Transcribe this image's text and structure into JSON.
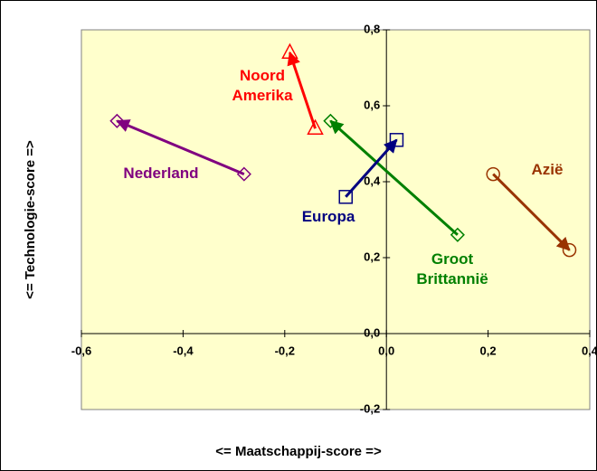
{
  "chart_data": {
    "type": "scatter",
    "x_label": "<= Maatschappij-score =>",
    "y_label": "<= Technologie-score =>",
    "xlim": [
      -0.6,
      0.4
    ],
    "ylim": [
      -0.2,
      0.8
    ],
    "xticks": [
      {
        "value": -0.6,
        "label": "-0,6"
      },
      {
        "value": -0.4,
        "label": "-0,4"
      },
      {
        "value": -0.2,
        "label": "-0,2"
      },
      {
        "value": 0,
        "label": "0,0"
      },
      {
        "value": 0.2,
        "label": "0,2"
      },
      {
        "value": 0.4,
        "label": "0,4"
      }
    ],
    "yticks": [
      {
        "value": -0.2,
        "label": "-0,2"
      },
      {
        "value": 0,
        "label": "0,0"
      },
      {
        "value": 0.2,
        "label": "0,2"
      },
      {
        "value": 0.4,
        "label": "0,4"
      },
      {
        "value": 0.6,
        "label": "0,6"
      },
      {
        "value": 0.8,
        "label": "0,8"
      }
    ],
    "series": [
      {
        "name": "Nederland",
        "color": "#800080",
        "marker": "diamond",
        "x": [
          -0.28,
          -0.53
        ],
        "values": [
          0.42,
          0.56
        ]
      },
      {
        "name": "Noord Amerika",
        "color": "#ff0000",
        "marker": "triangle",
        "x": [
          -0.14,
          -0.19
        ],
        "values": [
          0.54,
          0.74
        ]
      },
      {
        "name": "Groot Brittannië",
        "color": "#008000",
        "marker": "diamond",
        "x": [
          0.14,
          -0.11
        ],
        "values": [
          0.26,
          0.56
        ]
      },
      {
        "name": "Europa",
        "color": "#000080",
        "marker": "square",
        "x": [
          -0.08,
          0.02
        ],
        "values": [
          0.36,
          0.51
        ]
      },
      {
        "name": "Azië",
        "color": "#993300",
        "marker": "circle",
        "x": [
          0.21,
          0.36
        ],
        "values": [
          0.42,
          0.22
        ]
      }
    ]
  }
}
